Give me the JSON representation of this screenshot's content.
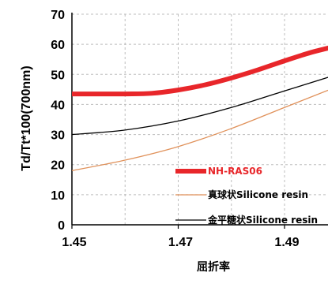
{
  "chart_data": {
    "type": "line",
    "title": "",
    "xlabel": "屈折率",
    "ylabel": "Td/Tt*100(700nm)",
    "xlim": [
      1.45,
      1.5
    ],
    "ylim": [
      0,
      70
    ],
    "x_ticks": [
      "1.45",
      "1.47",
      "1.49"
    ],
    "y_ticks": [
      "0",
      "10",
      "20",
      "30",
      "40",
      "50",
      "60",
      "70"
    ],
    "grid": true,
    "legend_position": "bottom-right",
    "series": [
      {
        "name": "NH-RAS06",
        "color": "#e8262a",
        "x": [
          1.45,
          1.46,
          1.465,
          1.47,
          1.475,
          1.48,
          1.485,
          1.49,
          1.495,
          1.5
        ],
        "y": [
          43.5,
          43.5,
          43.7,
          44.8,
          46.5,
          48.8,
          51.5,
          54.5,
          57.3,
          59.5
        ]
      },
      {
        "name": "真球状Silicone resin",
        "color": "#e0915a",
        "x": [
          1.45,
          1.46,
          1.47,
          1.48,
          1.49,
          1.5
        ],
        "y": [
          18,
          21.5,
          26,
          32,
          39,
          46
        ]
      },
      {
        "name": "金平糖状Silicone resin",
        "color": "#000000",
        "x": [
          1.45,
          1.46,
          1.47,
          1.48,
          1.49,
          1.5
        ],
        "y": [
          30,
          31.5,
          34.5,
          39,
          44.5,
          50
        ]
      }
    ]
  }
}
